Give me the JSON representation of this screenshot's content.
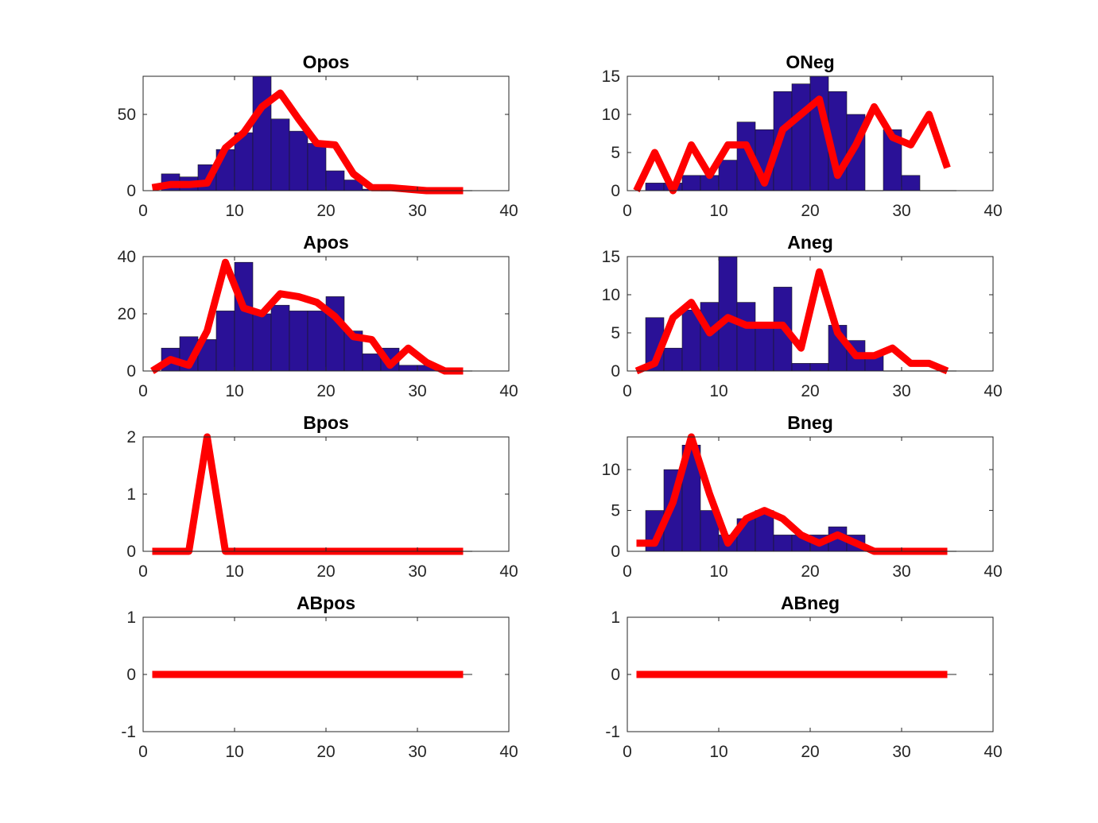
{
  "chart_data": [
    {
      "type": "bar",
      "title": "Opos",
      "xlim": [
        0,
        40
      ],
      "ylim": [
        0,
        75
      ],
      "xticks": [
        0,
        10,
        20,
        30,
        40
      ],
      "yticks": [
        0,
        50
      ],
      "bin_edges": [
        2,
        4,
        6,
        8,
        10,
        12,
        14,
        16,
        18,
        20,
        22,
        24,
        26,
        28,
        30,
        32,
        34,
        36
      ],
      "bar_values": [
        11,
        9,
        17,
        27,
        38,
        75,
        47,
        39,
        31,
        13,
        7,
        1,
        0,
        0,
        0,
        0,
        0
      ],
      "series": [
        {
          "x": [
            1,
            3,
            5,
            7,
            9,
            11,
            13,
            15,
            17,
            19,
            21,
            23,
            25,
            27,
            29,
            31,
            33,
            35
          ],
          "values": [
            2,
            4,
            4,
            5,
            28,
            38,
            55,
            64,
            47,
            31,
            30,
            11,
            2,
            2,
            1,
            0,
            0,
            0
          ]
        }
      ],
      "colors": {
        "bar": "#2a1197",
        "line": "#ff0000"
      }
    },
    {
      "type": "bar",
      "title": "ONeg",
      "xlim": [
        0,
        40
      ],
      "ylim": [
        0,
        15
      ],
      "xticks": [
        0,
        10,
        20,
        30,
        40
      ],
      "yticks": [
        0,
        5,
        10,
        15
      ],
      "bin_edges": [
        2,
        4,
        6,
        8,
        10,
        12,
        14,
        16,
        18,
        20,
        22,
        24,
        26,
        28,
        30,
        32,
        34,
        36
      ],
      "bar_values": [
        1,
        1,
        2,
        2,
        4,
        9,
        8,
        13,
        14,
        15,
        13,
        10,
        0,
        8,
        2,
        0,
        0
      ],
      "series": [
        {
          "x": [
            1,
            3,
            5,
            7,
            9,
            11,
            13,
            15,
            17,
            19,
            21,
            23,
            25,
            27,
            29,
            31,
            33,
            35
          ],
          "values": [
            0,
            5,
            0,
            6,
            2,
            6,
            6,
            1,
            8,
            10,
            12,
            2,
            6,
            11,
            7,
            6,
            10,
            3
          ]
        }
      ],
      "colors": {
        "bar": "#2a1197",
        "line": "#ff0000"
      }
    },
    {
      "type": "bar",
      "title": "Apos",
      "xlim": [
        0,
        40
      ],
      "ylim": [
        0,
        40
      ],
      "xticks": [
        0,
        10,
        20,
        30,
        40
      ],
      "yticks": [
        0,
        20,
        40
      ],
      "bin_edges": [
        2,
        4,
        6,
        8,
        10,
        12,
        14,
        16,
        18,
        20,
        22,
        24,
        26,
        28,
        30,
        32,
        34,
        36
      ],
      "bar_values": [
        8,
        12,
        11,
        21,
        38,
        20,
        23,
        21,
        21,
        26,
        14,
        6,
        8,
        2,
        2,
        0,
        0
      ],
      "series": [
        {
          "x": [
            1,
            3,
            5,
            7,
            9,
            11,
            13,
            15,
            17,
            19,
            21,
            23,
            25,
            27,
            29,
            31,
            33,
            35
          ],
          "values": [
            0,
            4,
            2,
            14,
            38,
            22,
            20,
            27,
            26,
            24,
            19,
            12,
            11,
            2,
            8,
            3,
            0,
            0
          ]
        }
      ],
      "colors": {
        "bar": "#2a1197",
        "line": "#ff0000"
      }
    },
    {
      "type": "bar",
      "title": "Aneg",
      "xlim": [
        0,
        40
      ],
      "ylim": [
        0,
        15
      ],
      "xticks": [
        0,
        10,
        20,
        30,
        40
      ],
      "yticks": [
        0,
        5,
        10,
        15
      ],
      "bin_edges": [
        2,
        4,
        6,
        8,
        10,
        12,
        14,
        16,
        18,
        20,
        22,
        24,
        26,
        28,
        30,
        32,
        34,
        36
      ],
      "bar_values": [
        7,
        3,
        8,
        9,
        15,
        9,
        6,
        11,
        1,
        1,
        6,
        4,
        2,
        0,
        0,
        0,
        0
      ],
      "series": [
        {
          "x": [
            1,
            3,
            5,
            7,
            9,
            11,
            13,
            15,
            17,
            19,
            21,
            23,
            25,
            27,
            29,
            31,
            33,
            35
          ],
          "values": [
            0,
            1,
            7,
            9,
            5,
            7,
            6,
            6,
            6,
            3,
            13,
            5,
            2,
            2,
            3,
            1,
            1,
            0
          ]
        }
      ],
      "colors": {
        "bar": "#2a1197",
        "line": "#ff0000"
      }
    },
    {
      "type": "bar",
      "title": "Bpos",
      "xlim": [
        0,
        40
      ],
      "ylim": [
        0,
        2
      ],
      "xticks": [
        0,
        10,
        20,
        30,
        40
      ],
      "yticks": [
        0,
        1,
        2
      ],
      "bin_edges": [
        2,
        4,
        6,
        8,
        10,
        12,
        14,
        16,
        18,
        20,
        22,
        24,
        26,
        28,
        30,
        32,
        34,
        36
      ],
      "bar_values": [
        0,
        0,
        0,
        0,
        0,
        0,
        0,
        0,
        0,
        0,
        0,
        0,
        0,
        0,
        0,
        0,
        0
      ],
      "series": [
        {
          "x": [
            1,
            3,
            5,
            7,
            9,
            11,
            13,
            15,
            17,
            19,
            21,
            23,
            25,
            27,
            29,
            31,
            33,
            35
          ],
          "values": [
            0,
            0,
            0,
            2,
            0,
            0,
            0,
            0,
            0,
            0,
            0,
            0,
            0,
            0,
            0,
            0,
            0,
            0
          ]
        }
      ],
      "colors": {
        "bar": "#2a1197",
        "line": "#ff0000"
      }
    },
    {
      "type": "bar",
      "title": "Bneg",
      "xlim": [
        0,
        40
      ],
      "ylim": [
        0,
        14
      ],
      "xticks": [
        0,
        10,
        20,
        30,
        40
      ],
      "yticks": [
        0,
        5,
        10
      ],
      "bin_edges": [
        2,
        4,
        6,
        8,
        10,
        12,
        14,
        16,
        18,
        20,
        22,
        24,
        26,
        28,
        30,
        32,
        34,
        36
      ],
      "bar_values": [
        5,
        10,
        13,
        5,
        2,
        4,
        5,
        2,
        2,
        2,
        3,
        2,
        0,
        0,
        0,
        0,
        0
      ],
      "series": [
        {
          "x": [
            1,
            3,
            5,
            7,
            9,
            11,
            13,
            15,
            17,
            19,
            21,
            23,
            25,
            27,
            29,
            31,
            33,
            35
          ],
          "values": [
            1,
            1,
            6,
            14,
            7,
            1,
            4,
            5,
            4,
            2,
            1,
            2,
            1,
            0,
            0,
            0,
            0,
            0
          ]
        }
      ],
      "colors": {
        "bar": "#2a1197",
        "line": "#ff0000"
      }
    },
    {
      "type": "bar",
      "title": "ABpos",
      "xlim": [
        0,
        40
      ],
      "ylim": [
        -1,
        1
      ],
      "xticks": [
        0,
        10,
        20,
        30,
        40
      ],
      "yticks": [
        -1,
        0,
        1
      ],
      "bin_edges": [
        2,
        4,
        6,
        8,
        10,
        12,
        14,
        16,
        18,
        20,
        22,
        24,
        26,
        28,
        30,
        32,
        34,
        36
      ],
      "bar_values": [
        0,
        0,
        0,
        0,
        0,
        0,
        0,
        0,
        0,
        0,
        0,
        0,
        0,
        0,
        0,
        0,
        0
      ],
      "series": [
        {
          "x": [
            1,
            3,
            5,
            7,
            9,
            11,
            13,
            15,
            17,
            19,
            21,
            23,
            25,
            27,
            29,
            31,
            33,
            35
          ],
          "values": [
            0,
            0,
            0,
            0,
            0,
            0,
            0,
            0,
            0,
            0,
            0,
            0,
            0,
            0,
            0,
            0,
            0,
            0
          ]
        }
      ],
      "colors": {
        "bar": "#2a1197",
        "line": "#ff0000"
      }
    },
    {
      "type": "bar",
      "title": "ABneg",
      "xlim": [
        0,
        40
      ],
      "ylim": [
        -1,
        1
      ],
      "xticks": [
        0,
        10,
        20,
        30,
        40
      ],
      "yticks": [
        -1,
        0,
        1
      ],
      "bin_edges": [
        2,
        4,
        6,
        8,
        10,
        12,
        14,
        16,
        18,
        20,
        22,
        24,
        26,
        28,
        30,
        32,
        34,
        36
      ],
      "bar_values": [
        0,
        0,
        0,
        0,
        0,
        0,
        0,
        0,
        0,
        0,
        0,
        0,
        0,
        0,
        0,
        0,
        0
      ],
      "series": [
        {
          "x": [
            1,
            3,
            5,
            7,
            9,
            11,
            13,
            15,
            17,
            19,
            21,
            23,
            25,
            27,
            29,
            31,
            33,
            35
          ],
          "values": [
            0,
            0,
            0,
            0,
            0,
            0,
            0,
            0,
            0,
            0,
            0,
            0,
            0,
            0,
            0,
            0,
            0,
            0
          ]
        }
      ],
      "colors": {
        "bar": "#2a1197",
        "line": "#ff0000"
      }
    }
  ]
}
